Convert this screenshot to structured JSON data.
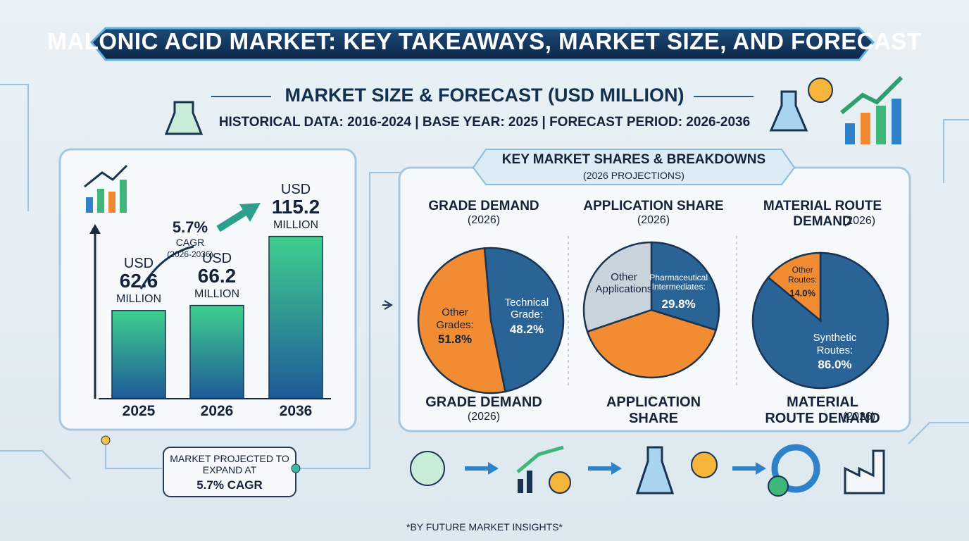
{
  "title": "MALONIC ACID MARKET: KEY TAKEAWAYS, MARKET SIZE, AND FORECAST",
  "subtitle": "MARKET SIZE & FORECAST (USD MILLION)",
  "periods": "HISTORICAL DATA: 2016-2024 | BASE YEAR: 2025 | FORECAST PERIOD: 2026-2036",
  "breakdown_title": "KEY MARKET SHARES & BREAKDOWNS",
  "breakdown_subtitle": "(2026 PROJECTIONS)",
  "projection_note": "MARKET PROJECTED TO EXPAND AT",
  "footer": "*BY FUTURE MARKET INSIGHTS*",
  "chart_data": [
    {
      "type": "bar",
      "categories": [
        "2025",
        "2026",
        "2036"
      ],
      "values": [
        62.6,
        66.2,
        115.2
      ],
      "unit_prefix": "USD",
      "unit_suffix": "MILLION",
      "ylim": [
        0,
        130
      ],
      "cagr": "5.7%",
      "cagr_label": "CAGR",
      "cagr_period": "(2026-2036)"
    },
    {
      "type": "pie",
      "title": "GRADE DEMAND",
      "subtitle": "(2026)",
      "categories": [
        "Technical Grade:",
        "Other Grades:"
      ],
      "values": [
        48.2,
        51.8
      ],
      "value_labels": [
        "48.2%",
        "51.8%"
      ],
      "colors": [
        "#2a6496",
        "#f28c33"
      ]
    },
    {
      "type": "pie",
      "title": "APPLICATION SHARE",
      "subtitle": "(2026)",
      "categories": [
        "Pharmaceutical Intermediates:",
        null,
        "Other Applications"
      ],
      "values": [
        29.8,
        40.0,
        30.2
      ],
      "value_labels": [
        "29.8%",
        null,
        null
      ],
      "colors": [
        "#2a6496",
        "#f28c33",
        "#c9d3dc"
      ]
    },
    {
      "type": "pie",
      "title": "MATERIAL ROUTE DEMAND",
      "subtitle": "(2026)",
      "categories": [
        "Synthetic Routes:",
        "Other Routes:"
      ],
      "values": [
        86.0,
        14.0
      ],
      "value_labels": [
        "86.0%",
        "14.0%"
      ],
      "colors": [
        "#2a6496",
        "#f28c33"
      ]
    }
  ]
}
